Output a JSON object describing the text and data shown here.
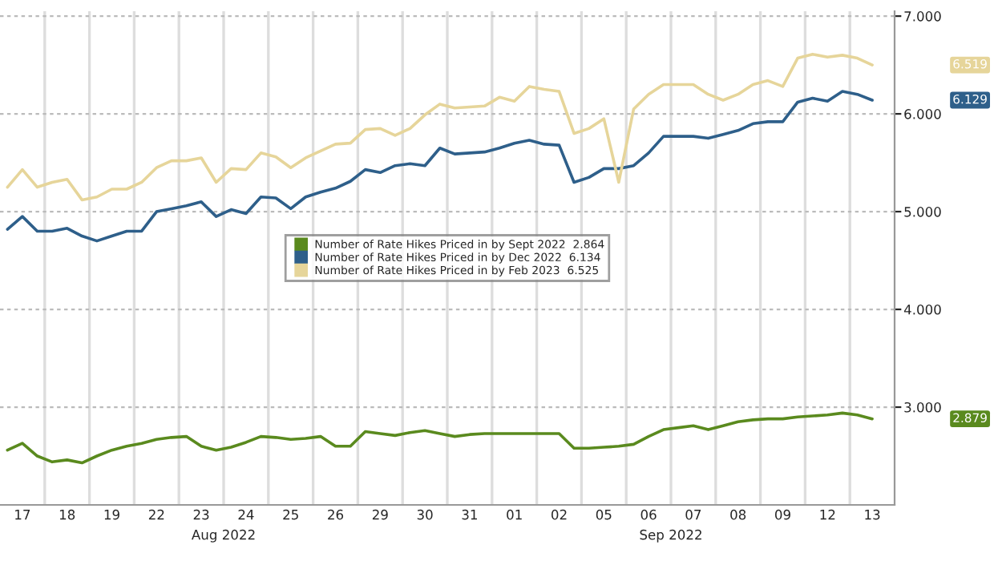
{
  "chart_data": {
    "type": "line",
    "categories": [
      null,
      "17",
      null,
      null,
      "18",
      null,
      null,
      "19",
      null,
      null,
      "22",
      null,
      null,
      "23",
      null,
      null,
      "24",
      null,
      null,
      "25",
      null,
      null,
      "26",
      null,
      null,
      "29",
      null,
      null,
      "30",
      null,
      null,
      "31",
      null,
      null,
      "01",
      null,
      null,
      "02",
      null,
      null,
      "05",
      null,
      null,
      "06",
      null,
      null,
      "07",
      null,
      null,
      "08",
      null,
      null,
      "09",
      null,
      null,
      "12",
      null,
      null,
      "13",
      null
    ],
    "ylim": [
      2.0,
      7.05
    ],
    "yticks": [
      {
        "value": 3,
        "label": "3.000"
      },
      {
        "value": 4,
        "label": "4.000"
      },
      {
        "value": 5,
        "label": "5.000"
      },
      {
        "value": 6,
        "label": "6.000"
      },
      {
        "value": 7,
        "label": "7.000"
      }
    ],
    "grid": "y",
    "legend": "center",
    "series": [
      {
        "name": "Number of Rate Hikes Priced in by Sept 2022  2.864",
        "color": "#5a8a1e",
        "values": [
          2.56,
          2.63,
          2.5,
          2.44,
          2.46,
          2.43,
          2.5,
          2.56,
          2.6,
          2.63,
          2.67,
          2.69,
          2.7,
          2.6,
          2.56,
          2.59,
          2.64,
          2.7,
          2.69,
          2.67,
          2.68,
          2.7,
          2.6,
          2.6,
          2.75,
          2.73,
          2.71,
          2.74,
          2.76,
          2.73,
          2.7,
          2.72,
          2.73,
          2.73,
          2.73,
          2.73,
          2.73,
          2.73,
          2.58,
          2.58,
          2.59,
          2.6,
          2.62,
          2.7,
          2.77,
          2.79,
          2.81,
          2.77,
          2.81,
          2.85,
          2.87,
          2.88,
          2.88,
          2.9,
          2.91,
          2.92,
          2.94,
          2.92,
          2.88,
          null
        ]
      },
      {
        "name": "Number of Rate Hikes Priced in by Dec 2022  6.134",
        "color": "#2e5f8a",
        "values": [
          4.82,
          4.95,
          4.8,
          4.8,
          4.83,
          4.75,
          4.7,
          4.75,
          4.8,
          4.8,
          5.0,
          5.03,
          5.06,
          5.1,
          4.95,
          5.02,
          4.98,
          5.15,
          5.14,
          5.03,
          5.15,
          5.2,
          5.24,
          5.31,
          5.43,
          5.4,
          5.47,
          5.49,
          5.47,
          5.65,
          5.59,
          5.6,
          5.61,
          5.65,
          5.7,
          5.73,
          5.69,
          5.68,
          5.3,
          5.35,
          5.44,
          5.44,
          5.47,
          5.6,
          5.77,
          5.77,
          5.77,
          5.75,
          5.79,
          5.83,
          5.9,
          5.92,
          5.92,
          6.12,
          6.16,
          6.13,
          6.23,
          6.2,
          6.14,
          null
        ]
      },
      {
        "name": "Number of Rate Hikes Priced in by Feb 2023  6.525",
        "color": "#e6d59a",
        "values": [
          5.25,
          5.43,
          5.25,
          5.3,
          5.33,
          5.12,
          5.15,
          5.23,
          5.23,
          5.3,
          5.45,
          5.52,
          5.52,
          5.55,
          5.3,
          5.44,
          5.43,
          5.6,
          5.56,
          5.45,
          5.55,
          5.62,
          5.69,
          5.7,
          5.84,
          5.85,
          5.78,
          5.85,
          5.99,
          6.1,
          6.06,
          6.07,
          6.08,
          6.17,
          6.13,
          6.28,
          6.25,
          6.23,
          5.8,
          5.85,
          5.95,
          5.3,
          6.05,
          6.2,
          6.3,
          6.3,
          6.3,
          6.2,
          6.14,
          6.2,
          6.3,
          6.34,
          6.28,
          6.57,
          6.61,
          6.58,
          6.6,
          6.57,
          6.5,
          null
        ]
      }
    ],
    "annotations": [
      "2.879",
      "6.129",
      "6.519",
      "Aug 2022",
      "Sep 2022"
    ]
  }
}
